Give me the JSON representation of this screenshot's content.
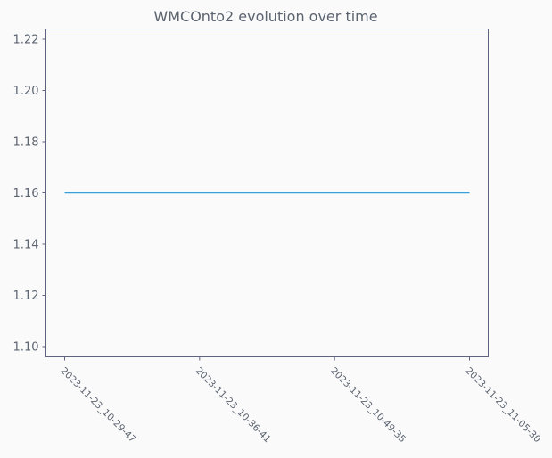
{
  "chart_data": {
    "type": "line",
    "title": "WMCOnto2 evolution over time",
    "xlabel": "",
    "ylabel": "",
    "categories": [
      "2023-11-23_10-29-47",
      "2023-11-23_10-36-41",
      "2023-11-23_10-49-35",
      "2023-11-23_11-05-30"
    ],
    "series": [
      {
        "values": [
          1.16,
          1.16,
          1.16,
          1.16
        ],
        "color": "#3a9fd8"
      }
    ],
    "ylim": [
      1.096,
      1.224
    ],
    "yticks": [
      1.1,
      1.12,
      1.14,
      1.16,
      1.18,
      1.2,
      1.22
    ],
    "ytick_labels": [
      "1.10",
      "1.12",
      "1.14",
      "1.16",
      "1.18",
      "1.20",
      "1.22"
    ],
    "grid": false,
    "legend": "none",
    "colors": {
      "background": "#fafafa",
      "axis": "#5f6380",
      "text": "#5c6470"
    }
  }
}
